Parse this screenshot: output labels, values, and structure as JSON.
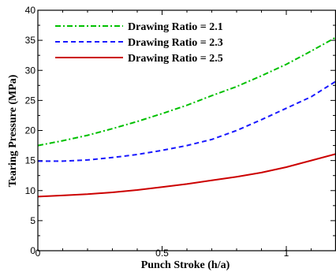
{
  "chart_data": {
    "type": "line",
    "title": "",
    "xlabel": "Punch Stroke (h/a)",
    "ylabel": "Tearing Pressure (MPa)",
    "xlim": [
      0,
      1.2
    ],
    "ylim": [
      0,
      40
    ],
    "x_ticks": [
      "0",
      "0.5",
      "1"
    ],
    "y_ticks": [
      "0",
      "5",
      "10",
      "15",
      "20",
      "25",
      "30",
      "35",
      "40"
    ],
    "grid": false,
    "legend_position": "top-left",
    "series": [
      {
        "name": "Drawing Ratio = 2.1",
        "color": "#00c000",
        "line_style": "dash-dot",
        "x": [
          0,
          0.1,
          0.2,
          0.3,
          0.4,
          0.5,
          0.6,
          0.7,
          0.8,
          0.9,
          1.0,
          1.1,
          1.2
        ],
        "y": [
          17.5,
          18.3,
          19.2,
          20.3,
          21.5,
          22.8,
          24.2,
          25.8,
          27.3,
          29.1,
          31.0,
          33.2,
          35.5
        ]
      },
      {
        "name": "Drawing Ratio = 2.3",
        "color": "#1a1aff",
        "line_style": "dashed",
        "x": [
          0,
          0.1,
          0.2,
          0.3,
          0.4,
          0.5,
          0.6,
          0.7,
          0.8,
          0.9,
          1.0,
          1.1,
          1.2
        ],
        "y": [
          14.9,
          14.9,
          15.1,
          15.5,
          16.0,
          16.7,
          17.5,
          18.5,
          20.0,
          21.8,
          23.7,
          25.6,
          28.2
        ]
      },
      {
        "name": "Drawing Ratio = 2.5",
        "color": "#cc0000",
        "line_style": "solid",
        "x": [
          0,
          0.1,
          0.2,
          0.3,
          0.4,
          0.5,
          0.6,
          0.7,
          0.8,
          0.9,
          1.0,
          1.1,
          1.2
        ],
        "y": [
          9.0,
          9.2,
          9.4,
          9.7,
          10.1,
          10.6,
          11.1,
          11.7,
          12.3,
          13.0,
          13.9,
          15.0,
          16.1
        ]
      }
    ]
  }
}
